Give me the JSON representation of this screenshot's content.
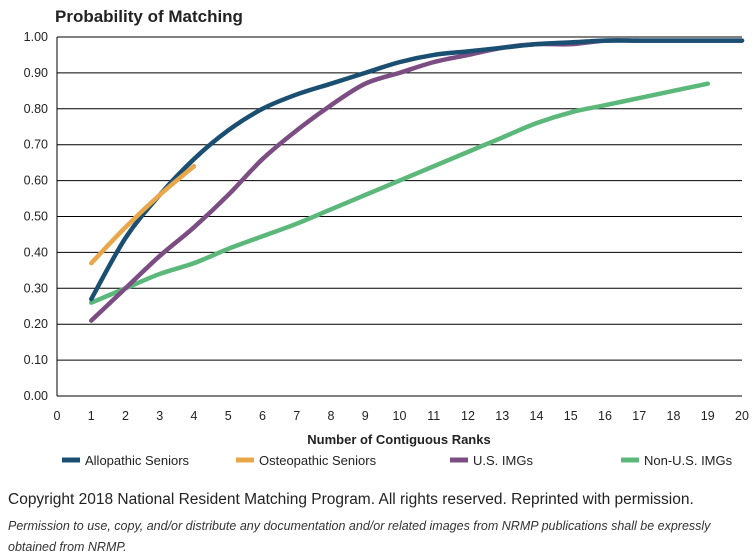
{
  "chart_data": {
    "type": "line",
    "title": "Probability of Matching",
    "xlabel": "Number of Contiguous Ranks",
    "ylabel": "",
    "xlim": [
      0,
      20
    ],
    "ylim": [
      0,
      1
    ],
    "xticks": [
      "0",
      "1",
      "2",
      "3",
      "4",
      "5",
      "6",
      "7",
      "8",
      "9",
      "10",
      "11",
      "12",
      "13",
      "14",
      "15",
      "16",
      "17",
      "18",
      "19",
      "20"
    ],
    "yticks": [
      "0.00",
      "0.10",
      "0.20",
      "0.30",
      "0.40",
      "0.50",
      "0.60",
      "0.70",
      "0.80",
      "0.90",
      "1.00"
    ],
    "grid": "horizontal",
    "legend_position": "bottom",
    "series": [
      {
        "name": "Allopathic Seniors",
        "color": "#1b4f72",
        "x": [
          1,
          2,
          3,
          4,
          5,
          6,
          7,
          8,
          9,
          10,
          11,
          12,
          13,
          14,
          15,
          16,
          17,
          18,
          19,
          20
        ],
        "values": [
          0.27,
          0.44,
          0.56,
          0.66,
          0.74,
          0.8,
          0.84,
          0.87,
          0.9,
          0.93,
          0.95,
          0.96,
          0.97,
          0.98,
          0.985,
          0.99,
          0.99,
          0.99,
          0.99,
          0.99
        ]
      },
      {
        "name": "Osteopathic Seniors",
        "color": "#e8a74a",
        "x": [
          1,
          2,
          3,
          4
        ],
        "values": [
          0.37,
          0.47,
          0.56,
          0.64
        ]
      },
      {
        "name": "U.S. IMGs",
        "color": "#7b4d82",
        "x": [
          1,
          2,
          3,
          4,
          5,
          6,
          7,
          8,
          9,
          10,
          11,
          12,
          13,
          14,
          15,
          16,
          17,
          18,
          19,
          20
        ],
        "values": [
          0.21,
          0.3,
          0.39,
          0.47,
          0.56,
          0.66,
          0.74,
          0.81,
          0.87,
          0.9,
          0.93,
          0.95,
          0.97,
          0.98,
          0.98,
          0.99,
          0.99,
          0.99,
          0.99,
          0.99
        ]
      },
      {
        "name": "Non-U.S. IMGs",
        "color": "#5cb87a",
        "x": [
          1,
          2,
          3,
          4,
          5,
          6,
          7,
          8,
          9,
          10,
          11,
          12,
          13,
          14,
          15,
          16,
          17,
          18,
          19
        ],
        "values": [
          0.26,
          0.3,
          0.34,
          0.37,
          0.41,
          0.445,
          0.48,
          0.52,
          0.56,
          0.6,
          0.64,
          0.68,
          0.72,
          0.76,
          0.79,
          0.81,
          0.83,
          0.85,
          0.87
        ]
      }
    ]
  },
  "footer": {
    "copyright": "Copyright 2018 National Resident Matching Program. All rights reserved. Reprinted with permission.",
    "permission": "Permission to use, copy, and/or distribute any documentation and/or related images from NRMP publications shall be expressly obtained from NRMP."
  }
}
